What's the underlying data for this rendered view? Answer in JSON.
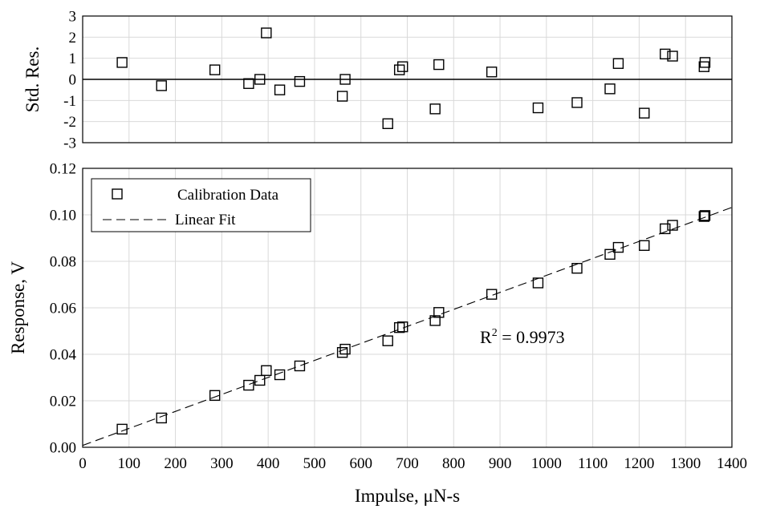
{
  "chart_data": [
    {
      "type": "scatter",
      "panel": "residuals",
      "ylabel": "Std. Res.",
      "xlim": [
        0,
        1400
      ],
      "ylim": [
        -3,
        3
      ],
      "x_ticks": [
        0,
        100,
        200,
        300,
        400,
        500,
        600,
        700,
        800,
        900,
        1000,
        1100,
        1200,
        1300,
        1400
      ],
      "y_ticks": [
        3,
        2,
        1,
        0,
        -1,
        -2,
        -3
      ],
      "grid": true,
      "zero_line": true,
      "series": [
        {
          "x": [
            85,
            170,
            285,
            358,
            382,
            396,
            425,
            468,
            560,
            566,
            658,
            683,
            690,
            760,
            768,
            882,
            982,
            1066,
            1137,
            1155,
            1211,
            1256,
            1272,
            1340,
            1342
          ],
          "y": [
            0.8,
            -0.3,
            0.45,
            -0.2,
            0.0,
            2.2,
            -0.5,
            -0.1,
            -0.8,
            0.0,
            -2.1,
            0.45,
            0.6,
            -1.4,
            0.7,
            0.35,
            -1.35,
            -1.1,
            -0.45,
            0.75,
            -1.6,
            1.2,
            1.1,
            0.6,
            0.8
          ]
        }
      ]
    },
    {
      "type": "scatter",
      "panel": "calibration",
      "xlabel": "Impulse, μN-s",
      "ylabel": "Response, V",
      "xlim": [
        0,
        1400
      ],
      "ylim": [
        0,
        0.12
      ],
      "x_ticks": [
        0,
        100,
        200,
        300,
        400,
        500,
        600,
        700,
        800,
        900,
        1000,
        1100,
        1200,
        1300,
        1400
      ],
      "y_ticks": [
        "0.12",
        "0.10",
        "0.08",
        "0.06",
        "0.04",
        "0.02",
        "0.00"
      ],
      "grid": true,
      "legend_position": "top-left",
      "series": [
        {
          "name": "Calibration Data",
          "x": [
            85,
            170,
            285,
            358,
            382,
            396,
            425,
            468,
            560,
            566,
            658,
            683,
            690,
            760,
            768,
            882,
            982,
            1066,
            1137,
            1155,
            1211,
            1256,
            1272,
            1340,
            1342
          ],
          "y": [
            0.0078,
            0.0126,
            0.0223,
            0.0267,
            0.0288,
            0.033,
            0.0312,
            0.035,
            0.0408,
            0.0422,
            0.0458,
            0.0515,
            0.0518,
            0.0545,
            0.058,
            0.0658,
            0.0707,
            0.077,
            0.083,
            0.086,
            0.0868,
            0.094,
            0.0955,
            0.0993,
            0.0997
          ]
        },
        {
          "name": "Linear Fit",
          "line": {
            "x": [
              0,
              1400
            ],
            "y": [
              0.0008,
              0.1032
            ]
          }
        }
      ],
      "annotation": {
        "base": "R",
        "sup": "2",
        "rest": " = 0.9973"
      }
    }
  ]
}
